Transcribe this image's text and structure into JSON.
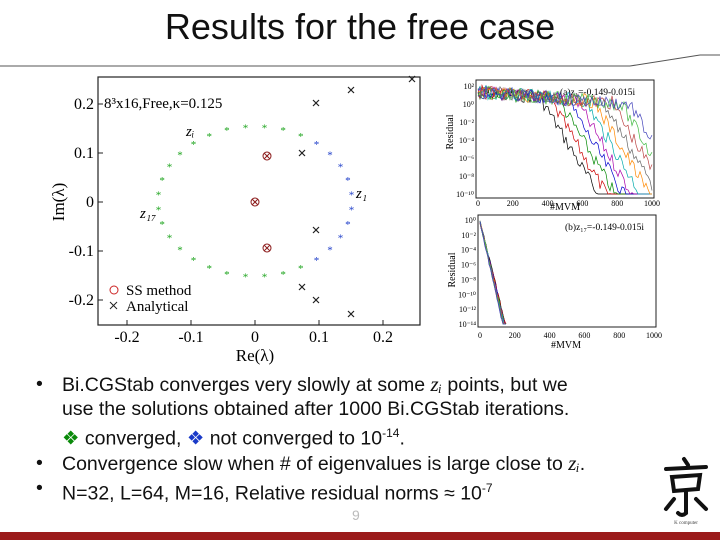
{
  "slide": {
    "title": "Results for the free case",
    "page_number": "9",
    "accent_color": "#9b1b1b",
    "logo_caption": "京 computer"
  },
  "main_plot": {
    "label": "8³x16,Free,κ=0.125",
    "xlabel": "Re(λ)",
    "ylabel": "Im(λ)",
    "xticks": [
      "-0.2",
      "-0.1",
      "0",
      "0.1",
      "0.2"
    ],
    "yticks": [
      "0.2",
      "0.1",
      "0",
      "-0.1",
      "-0.2"
    ],
    "annot_z1": "z₁",
    "annot_zi": "zᵢ",
    "annot_z17": "z₁₇",
    "legend": [
      "SS method",
      "Analytical"
    ]
  },
  "inset_top": {
    "label": "(a)z₁=-0.149-0.015i",
    "ylabel": "Residual",
    "xlabel": "#MVM",
    "xticks": [
      "0",
      "200",
      "400",
      "600",
      "800",
      "1000"
    ],
    "yticks": [
      "10²",
      "10⁰",
      "10⁻²",
      "10⁻⁴",
      "10⁻⁶",
      "10⁻⁸",
      "10⁻¹⁰"
    ]
  },
  "inset_bottom": {
    "label": "(b)z₁₇=-0.149-0.015i",
    "ylabel": "Residual",
    "xlabel": "#MVM",
    "xticks": [
      "0",
      "200",
      "400",
      "600",
      "800",
      "1000"
    ],
    "yticks": [
      "10⁰",
      "10⁻²",
      "10⁻⁴",
      "10⁻⁶",
      "10⁻⁸",
      "10⁻¹⁰",
      "10⁻¹²",
      "10⁻¹⁴"
    ]
  },
  "bullets": {
    "b1_pre": "Bi.CGStab converges very slowly at some ",
    "b1_z": "zᵢ",
    "b1_post": " points, but we",
    "b1_line2": "use the solutions obtained after 1000 Bi.CGStab iterations.",
    "b1_conv": " converged, ",
    "b1_notconv": " not converged to 10",
    "b1_exp": "-14",
    "b1_end": ".",
    "b2_pre": "Convergence slow when # of eigenvalues is large close to ",
    "b2_z": "zᵢ",
    "b2_end": ".",
    "b3_pre": "N=32, L=64, M=16, Relative residual norms ≈ 10",
    "b3_exp": "-7"
  }
}
